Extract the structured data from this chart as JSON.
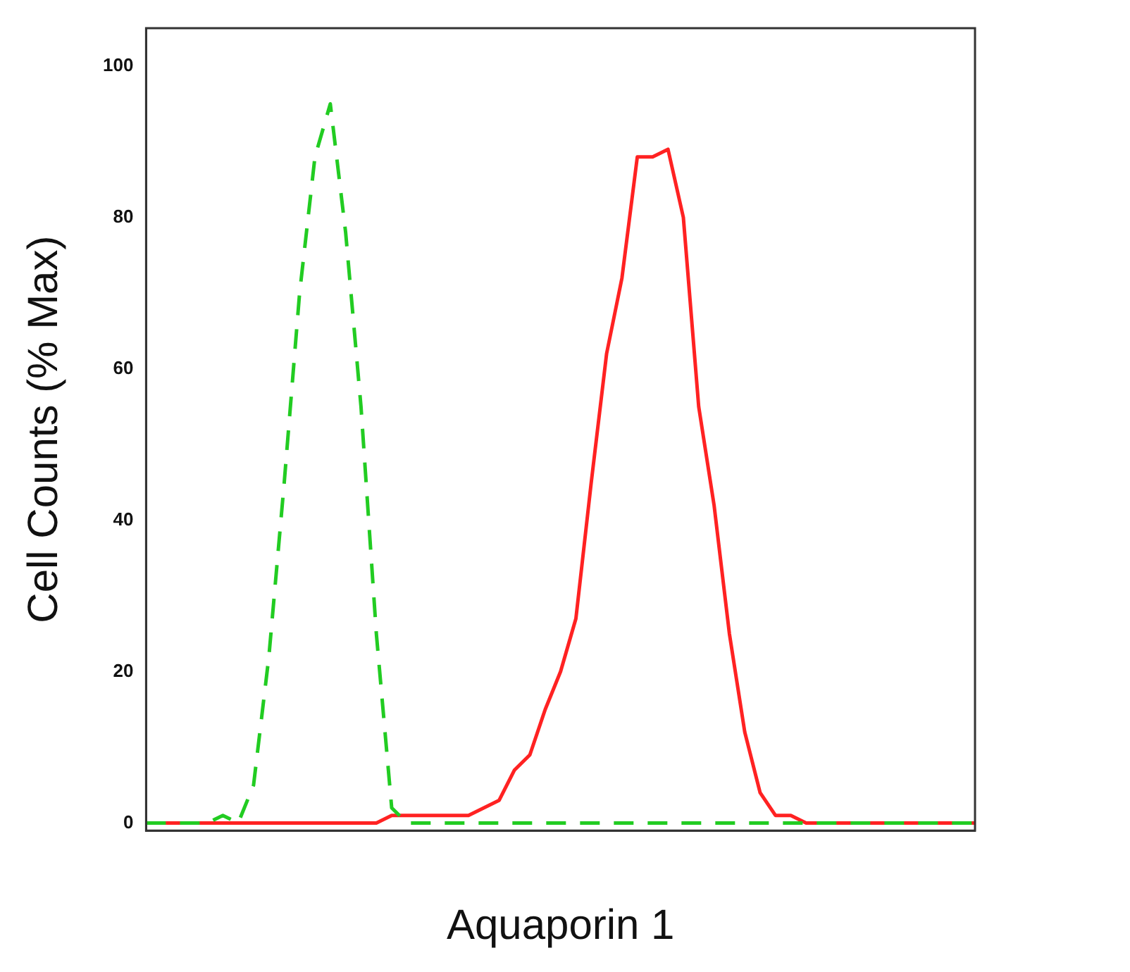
{
  "chart_data": {
    "type": "line",
    "xlabel": "Aquaporin 1",
    "ylabel": "Cell Counts (% Max)",
    "ylim": [
      -1,
      105
    ],
    "yticks": [
      0,
      20,
      40,
      60,
      80,
      100
    ],
    "grid": false,
    "legend": false,
    "marker": "none",
    "categories": [
      null,
      null,
      null,
      null,
      null,
      null,
      null,
      null,
      null,
      null,
      null,
      null,
      null,
      null,
      null,
      null,
      null,
      null,
      null,
      null,
      null,
      null,
      null,
      null,
      null,
      null,
      null,
      null,
      null,
      null,
      null,
      null,
      null,
      null,
      null,
      null,
      null,
      null,
      null,
      null,
      null,
      null,
      null,
      null,
      null,
      null,
      null,
      null,
      null,
      null,
      null,
      null,
      null,
      null,
      null
    ],
    "series": [
      {
        "color": "#22cc22",
        "line_style": "dashed",
        "values": [
          0,
          0,
          0,
          0,
          0,
          1,
          0,
          5,
          22,
          45,
          70,
          88,
          95,
          78,
          55,
          25,
          2,
          0,
          0,
          0,
          0,
          0,
          0,
          0,
          0,
          0,
          0,
          0,
          0,
          0,
          0,
          0,
          0,
          0,
          0,
          0,
          0,
          0,
          0,
          0,
          0,
          0,
          0,
          0,
          0,
          0,
          0,
          0,
          0,
          0,
          0,
          0,
          0,
          0,
          0
        ]
      },
      {
        "color": "#ff2222",
        "line_style": "solid",
        "values": [
          0,
          0,
          0,
          0,
          0,
          0,
          0,
          0,
          0,
          0,
          0,
          0,
          0,
          0,
          0,
          0,
          1,
          1,
          1,
          1,
          1,
          1,
          2,
          3,
          7,
          9,
          15,
          20,
          27,
          45,
          62,
          72,
          88,
          88,
          89,
          80,
          55,
          42,
          25,
          12,
          4,
          1,
          1,
          0,
          0,
          0,
          0,
          0,
          0,
          0,
          0,
          0,
          0,
          0,
          0
        ]
      }
    ]
  }
}
